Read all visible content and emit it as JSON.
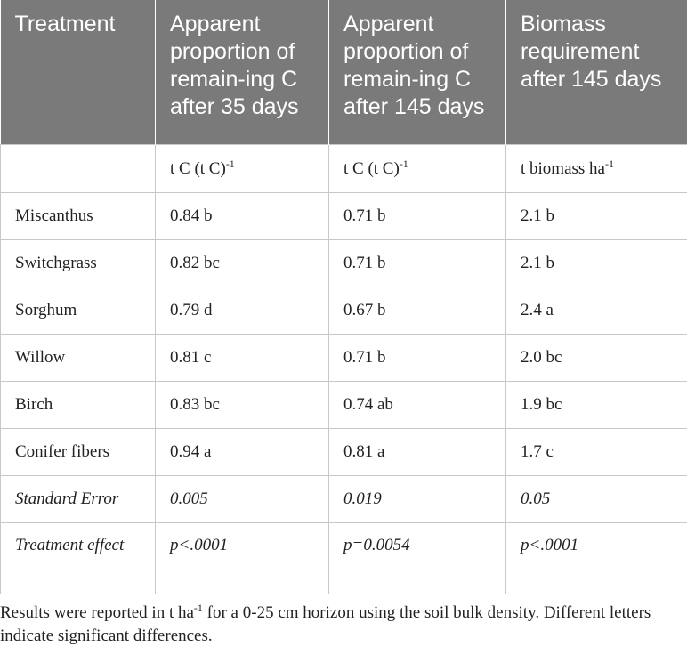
{
  "table": {
    "headers": [
      "Treatment",
      "Apparent proportion of remain-ing C after 35 days",
      "Apparent proportion of remain-ing C after 145 days",
      "Biomass requirement after 145 days"
    ],
    "units": {
      "c1": "",
      "c2_base": "t C (t C)",
      "c2_sup": "-1",
      "c3_base": "t C (t C)",
      "c3_sup": "-1",
      "c4_base": "t biomass ha",
      "c4_sup": "-1"
    },
    "rows": [
      [
        "Miscanthus",
        "0.84 b",
        "0.71 b",
        "2.1 b"
      ],
      [
        "Switchgrass",
        "0.82 bc",
        "0.71 b",
        "2.1 b"
      ],
      [
        "Sorghum",
        "0.79 d",
        "0.67 b",
        "2.4 a"
      ],
      [
        "Willow",
        "0.81 c",
        "0.71 b",
        "2.0 bc"
      ],
      [
        "Birch",
        "0.83 bc",
        "0.74 ab",
        "1.9 bc"
      ],
      [
        "Conifer fibers",
        "0.94 a",
        "0.81 a",
        "1.7 c"
      ]
    ],
    "standard_error": [
      "Standard Error",
      "0.005",
      "0.019",
      "0.05"
    ],
    "treatment_effect": [
      "Treatment effect",
      "p<.0001",
      "p=0.0054",
      "p<.0001"
    ]
  },
  "footnote": {
    "part1": "Results were reported in t ha",
    "sup": "-1",
    "part2": " for a 0-25 cm horizon using the soil bulk density. Different letters indicate significant differences."
  }
}
